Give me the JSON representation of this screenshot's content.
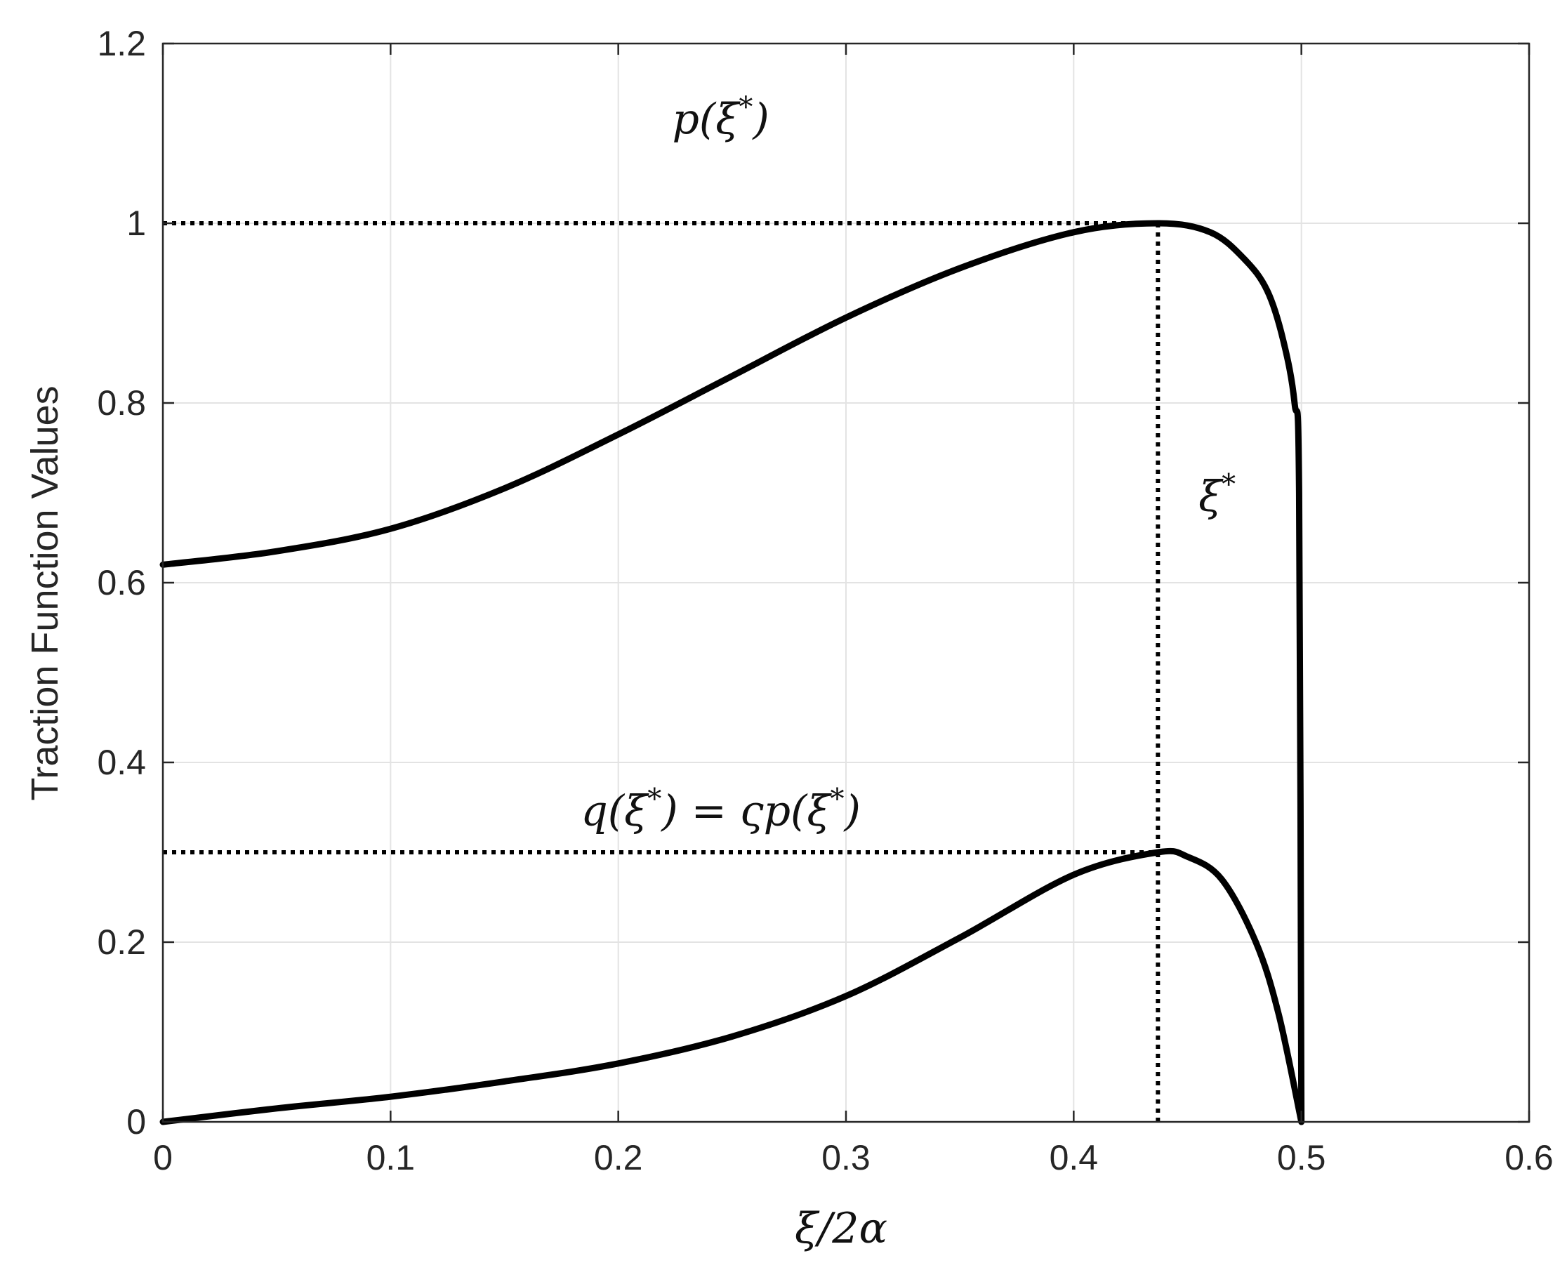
{
  "chart_data": {
    "type": "line",
    "title": "",
    "xlabel": "ξ/2α",
    "ylabel": "Traction Function Values",
    "xlim": [
      0,
      0.6
    ],
    "ylim": [
      0,
      1.2
    ],
    "xticks": [
      0,
      0.1,
      0.2,
      0.3,
      0.4,
      0.5,
      0.6
    ],
    "xtick_labels": [
      "0",
      "0.1",
      "0.2",
      "0.3",
      "0.4",
      "0.5",
      "0.6"
    ],
    "yticks": [
      0,
      0.2,
      0.4,
      0.6,
      0.8,
      1.0,
      1.2
    ],
    "ytick_labels": [
      "0",
      "0.2",
      "0.4",
      "0.6",
      "0.8",
      "1",
      "1.2"
    ],
    "grid": true,
    "line_color": "#000000",
    "grid_color": "#e3e3e3",
    "series": [
      {
        "x": [
          0,
          0.05,
          0.1,
          0.15,
          0.2,
          0.25,
          0.3,
          0.35,
          0.4,
          0.437,
          0.46,
          0.475,
          0.485,
          0.492,
          0.497,
          0.499,
          0.5
        ],
        "y": [
          0.62,
          0.635,
          0.66,
          0.705,
          0.765,
          0.83,
          0.895,
          0.95,
          0.99,
          1.0,
          0.99,
          0.96,
          0.925,
          0.87,
          0.8,
          0.7,
          0.0
        ]
      },
      {
        "x": [
          0,
          0.05,
          0.1,
          0.15,
          0.2,
          0.25,
          0.3,
          0.35,
          0.4,
          0.437,
          0.45,
          0.465,
          0.48,
          0.49,
          0.5
        ],
        "y": [
          0.0,
          0.015,
          0.028,
          0.045,
          0.065,
          0.095,
          0.14,
          0.205,
          0.275,
          0.3,
          0.295,
          0.27,
          0.2,
          0.12,
          0.0
        ]
      }
    ],
    "reference_lines": [
      {
        "type": "h",
        "y": 1.0,
        "x_start": 0,
        "x_end": 0.437,
        "style": "dotted"
      },
      {
        "type": "h",
        "y": 0.3,
        "x_start": 0,
        "x_end": 0.437,
        "style": "dotted"
      },
      {
        "type": "v",
        "x": 0.437,
        "y_start": 0,
        "y_end": 1.0,
        "style": "dotted"
      }
    ],
    "annotations": [
      {
        "id": "p",
        "text": "p(ξ*)",
        "x": 0.245,
        "y": 1.1
      },
      {
        "id": "q",
        "text": "q(ξ*) = ςp(ξ*)",
        "x": 0.245,
        "y": 0.33
      },
      {
        "id": "xi",
        "text": "ξ*",
        "x": 0.463,
        "y": 0.68
      }
    ]
  }
}
